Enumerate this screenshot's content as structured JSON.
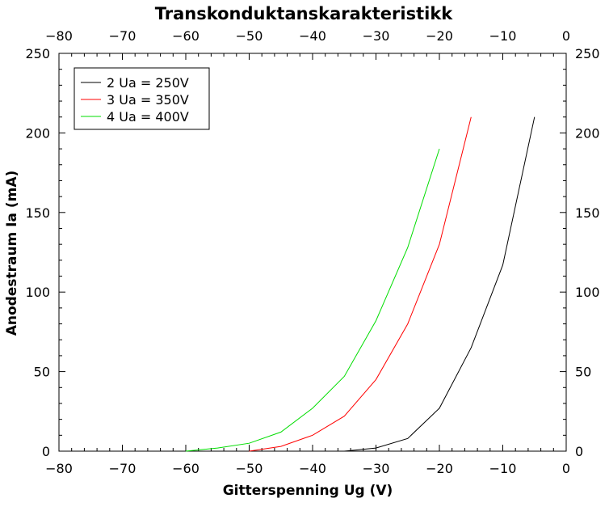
{
  "chart_data": {
    "type": "line",
    "title": "Transkonduktanskarakteristikk",
    "xlabel": "Gitterspenning Ug (V)",
    "ylabel": "Anodestraum Ia (mA)",
    "xlim": [
      -80,
      0
    ],
    "ylim": [
      0,
      250
    ],
    "x_ticks": [
      -80,
      -70,
      -60,
      -50,
      -40,
      -30,
      -20,
      -10,
      0
    ],
    "x_tick_labels": [
      "−80",
      "−70",
      "−60",
      "−50",
      "−40",
      "−30",
      "−20",
      "−10",
      "0"
    ],
    "y_ticks": [
      0,
      50,
      100,
      150,
      200,
      250
    ],
    "y_tick_labels": [
      "0",
      "50",
      "100",
      "150",
      "200",
      "250"
    ],
    "mirror_axes": true,
    "grid": false,
    "legend_position": "top-left",
    "series": [
      {
        "name": "2 Ua = 250V",
        "color": "#000000",
        "x": [
          -35,
          -30,
          -25,
          -20,
          -15,
          -10,
          -5
        ],
        "y": [
          0,
          2,
          8,
          27,
          65,
          117,
          210
        ]
      },
      {
        "name": "3 Ua = 350V",
        "color": "#ff0000",
        "x": [
          -50,
          -45,
          -40,
          -35,
          -30,
          -25,
          -20,
          -15
        ],
        "y": [
          0,
          3,
          10,
          22,
          45,
          80,
          130,
          210
        ]
      },
      {
        "name": "4 Ua = 400V",
        "color": "#00dd00",
        "x": [
          -60,
          -55,
          -50,
          -45,
          -40,
          -35,
          -30,
          -25,
          -20
        ],
        "y": [
          0,
          2,
          5,
          12,
          27,
          47,
          82,
          128,
          190
        ]
      }
    ]
  }
}
